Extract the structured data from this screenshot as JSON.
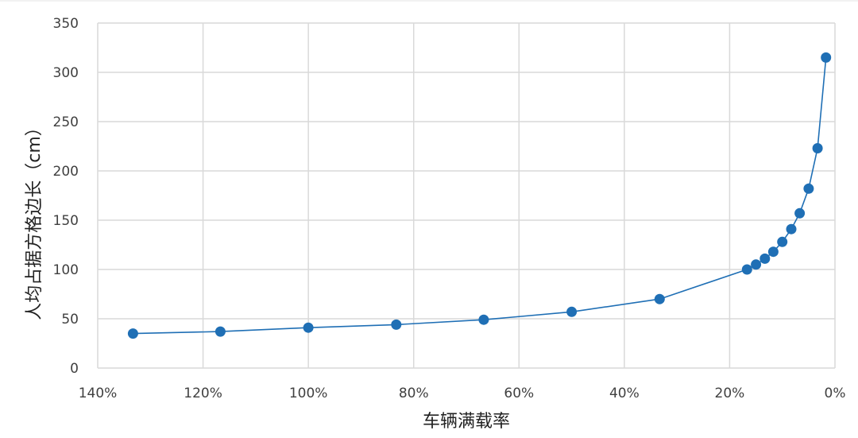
{
  "chart_data": {
    "type": "scatter",
    "xlabel": "车辆满载率",
    "ylabel": "人均占据方格边长（cm）",
    "x_reversed": true,
    "xlim": [
      0,
      140
    ],
    "ylim": [
      0,
      350
    ],
    "x_ticks": [
      140,
      120,
      100,
      80,
      60,
      40,
      20,
      0
    ],
    "x_tick_labels": [
      "140%",
      "120%",
      "100%",
      "80%",
      "60%",
      "40%",
      "20%",
      "0%"
    ],
    "y_ticks": [
      0,
      50,
      100,
      150,
      200,
      250,
      300,
      350
    ],
    "y_tick_labels": [
      "0",
      "50",
      "100",
      "150",
      "200",
      "250",
      "300",
      "350"
    ],
    "grid": true,
    "legend": "none",
    "series": [
      {
        "color": "#1f6fb5",
        "x": [
          133.3,
          116.7,
          100,
          83.3,
          66.7,
          50,
          33.3,
          16.7,
          15.0,
          13.3,
          11.7,
          10.0,
          8.3,
          6.7,
          5.0,
          3.3,
          1.7
        ],
        "y": [
          35,
          37,
          41,
          44,
          49,
          57,
          70,
          100,
          105,
          111,
          118,
          128,
          141,
          157,
          182,
          223,
          315
        ]
      }
    ]
  }
}
